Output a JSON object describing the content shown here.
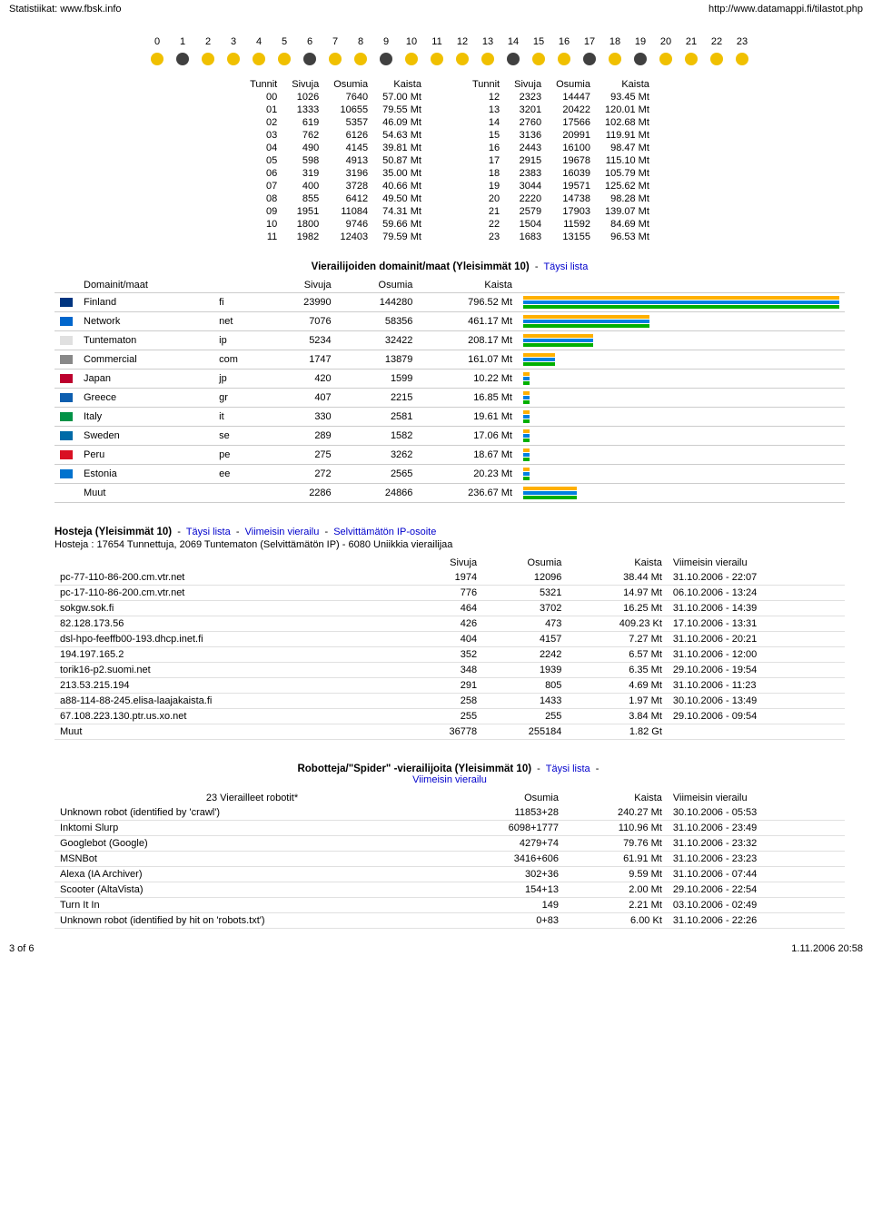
{
  "header": {
    "left": "Statistiikat: www.fbsk.info",
    "right": "http://www.datamappi.fi/tilastot.php"
  },
  "clock": {
    "hours": [
      "0",
      "1",
      "2",
      "3",
      "4",
      "5",
      "6",
      "7",
      "8",
      "9",
      "10",
      "11",
      "12",
      "13",
      "14",
      "15",
      "16",
      "17",
      "18",
      "19",
      "20",
      "21",
      "22",
      "23"
    ],
    "pie_colors": [
      "#f0c000",
      "#404040",
      "#f0c000",
      "#f0c000",
      "#f0c000",
      "#f0c000",
      "#404040",
      "#f0c000",
      "#f0c000",
      "#404040",
      "#f0c000",
      "#f0c000",
      "#f0c000",
      "#f0c000",
      "#404040",
      "#f0c000",
      "#f0c000",
      "#404040",
      "#f0c000",
      "#404040",
      "#f0c000",
      "#f0c000",
      "#f0c000",
      "#f0c000"
    ]
  },
  "hourly": {
    "headers": [
      "Tunnit",
      "Sivuja",
      "Osumia",
      "Kaista"
    ],
    "left": [
      [
        "00",
        "1026",
        "7640",
        "57.00 Mt"
      ],
      [
        "01",
        "1333",
        "10655",
        "79.55 Mt"
      ],
      [
        "02",
        "619",
        "5357",
        "46.09 Mt"
      ],
      [
        "03",
        "762",
        "6126",
        "54.63 Mt"
      ],
      [
        "04",
        "490",
        "4145",
        "39.81 Mt"
      ],
      [
        "05",
        "598",
        "4913",
        "50.87 Mt"
      ],
      [
        "06",
        "319",
        "3196",
        "35.00 Mt"
      ],
      [
        "07",
        "400",
        "3728",
        "40.66 Mt"
      ],
      [
        "08",
        "855",
        "6412",
        "49.50 Mt"
      ],
      [
        "09",
        "1951",
        "11084",
        "74.31 Mt"
      ],
      [
        "10",
        "1800",
        "9746",
        "59.66 Mt"
      ],
      [
        "11",
        "1982",
        "12403",
        "79.59 Mt"
      ]
    ],
    "right": [
      [
        "12",
        "2323",
        "14447",
        "93.45 Mt"
      ],
      [
        "13",
        "3201",
        "20422",
        "120.01 Mt"
      ],
      [
        "14",
        "2760",
        "17566",
        "102.68 Mt"
      ],
      [
        "15",
        "3136",
        "20991",
        "119.91 Mt"
      ],
      [
        "16",
        "2443",
        "16100",
        "98.47 Mt"
      ],
      [
        "17",
        "2915",
        "19678",
        "115.10 Mt"
      ],
      [
        "18",
        "2383",
        "16039",
        "105.79 Mt"
      ],
      [
        "19",
        "3044",
        "19571",
        "125.62 Mt"
      ],
      [
        "20",
        "2220",
        "14738",
        "98.28 Mt"
      ],
      [
        "21",
        "2579",
        "17903",
        "139.07 Mt"
      ],
      [
        "22",
        "1504",
        "11592",
        "84.69 Mt"
      ],
      [
        "23",
        "1683",
        "13155",
        "96.53 Mt"
      ]
    ]
  },
  "domains": {
    "title": "Vierailijoiden domainit/maat (Yleisimmät 10)",
    "full_list": "Täysi lista",
    "headers": [
      "Domainit/maat",
      "",
      "Sivuja",
      "Osumia",
      "Kaista"
    ],
    "rows": [
      {
        "flag": "#003580",
        "name": "Finland",
        "tld": "fi",
        "sivuja": "23990",
        "osumia": "144280",
        "kaista": "796.52 Mt",
        "p": 100
      },
      {
        "flag": "#0066cc",
        "name": "Network",
        "tld": "net",
        "sivuja": "7076",
        "osumia": "58356",
        "kaista": "461.17 Mt",
        "p": 40
      },
      {
        "flag": "#e0e0e0",
        "name": "Tuntematon",
        "tld": "ip",
        "sivuja": "5234",
        "osumia": "32422",
        "kaista": "208.17 Mt",
        "p": 22
      },
      {
        "flag": "#888",
        "name": "Commercial",
        "tld": "com",
        "sivuja": "1747",
        "osumia": "13879",
        "kaista": "161.07 Mt",
        "p": 10
      },
      {
        "flag": "#bc002d",
        "name": "Japan",
        "tld": "jp",
        "sivuja": "420",
        "osumia": "1599",
        "kaista": "10.22 Mt",
        "p": 2
      },
      {
        "flag": "#0d5eaf",
        "name": "Greece",
        "tld": "gr",
        "sivuja": "407",
        "osumia": "2215",
        "kaista": "16.85 Mt",
        "p": 2
      },
      {
        "flag": "#009246",
        "name": "Italy",
        "tld": "it",
        "sivuja": "330",
        "osumia": "2581",
        "kaista": "19.61 Mt",
        "p": 2
      },
      {
        "flag": "#006aa7",
        "name": "Sweden",
        "tld": "se",
        "sivuja": "289",
        "osumia": "1582",
        "kaista": "17.06 Mt",
        "p": 2
      },
      {
        "flag": "#d91023",
        "name": "Peru",
        "tld": "pe",
        "sivuja": "275",
        "osumia": "3262",
        "kaista": "18.67 Mt",
        "p": 2
      },
      {
        "flag": "#0072ce",
        "name": "Estonia",
        "tld": "ee",
        "sivuja": "272",
        "osumia": "2565",
        "kaista": "20.23 Mt",
        "p": 2
      },
      {
        "flag": "",
        "name": "Muut",
        "tld": "",
        "sivuja": "2286",
        "osumia": "24866",
        "kaista": "236.67 Mt",
        "p": 17
      }
    ]
  },
  "hosts": {
    "title": "Hosteja (Yleisimmät 10)",
    "links": {
      "full": "Täysi lista",
      "last": "Viimeisin vierailu",
      "unknown": "Selvittämätön IP-osoite"
    },
    "sub": "Hosteja : 17654 Tunnettuja, 2069 Tuntematon (Selvittämätön IP) - 6080 Uniikkia vierailijaa",
    "headers": [
      "",
      "Sivuja",
      "Osumia",
      "Kaista",
      "Viimeisin vierailu"
    ],
    "rows": [
      [
        "pc-77-110-86-200.cm.vtr.net",
        "1974",
        "12096",
        "38.44 Mt",
        "31.10.2006 - 22:07"
      ],
      [
        "pc-17-110-86-200.cm.vtr.net",
        "776",
        "5321",
        "14.97 Mt",
        "06.10.2006 - 13:24"
      ],
      [
        "sokgw.sok.fi",
        "464",
        "3702",
        "16.25 Mt",
        "31.10.2006 - 14:39"
      ],
      [
        "82.128.173.56",
        "426",
        "473",
        "409.23 Kt",
        "17.10.2006 - 13:31"
      ],
      [
        "dsl-hpo-feeffb00-193.dhcp.inet.fi",
        "404",
        "4157",
        "7.27 Mt",
        "31.10.2006 - 20:21"
      ],
      [
        "194.197.165.2",
        "352",
        "2242",
        "6.57 Mt",
        "31.10.2006 - 12:00"
      ],
      [
        "torik16-p2.suomi.net",
        "348",
        "1939",
        "6.35 Mt",
        "29.10.2006 - 19:54"
      ],
      [
        "213.53.215.194",
        "291",
        "805",
        "4.69 Mt",
        "31.10.2006 - 11:23"
      ],
      [
        "a88-114-88-245.elisa-laajakaista.fi",
        "258",
        "1433",
        "1.97 Mt",
        "30.10.2006 - 13:49"
      ],
      [
        "67.108.223.130.ptr.us.xo.net",
        "255",
        "255",
        "3.84 Mt",
        "29.10.2006 - 09:54"
      ],
      [
        "Muut",
        "36778",
        "255184",
        "1.82 Gt",
        ""
      ]
    ]
  },
  "robots": {
    "title": "Robotteja/\"Spider\" -vierailijoita (Yleisimmät 10)",
    "links": {
      "full": "Täysi lista",
      "last": "Viimeisin vierailu"
    },
    "sub": "23 Vierailleet robotit*",
    "headers": [
      "",
      "Osumia",
      "Kaista",
      "Viimeisin vierailu"
    ],
    "rows": [
      [
        "Unknown robot (identified by 'crawl')",
        "11853+28",
        "240.27 Mt",
        "30.10.2006 - 05:53"
      ],
      [
        "Inktomi Slurp",
        "6098+1777",
        "110.96 Mt",
        "31.10.2006 - 23:49"
      ],
      [
        "Googlebot (Google)",
        "4279+74",
        "79.76 Mt",
        "31.10.2006 - 23:32"
      ],
      [
        "MSNBot",
        "3416+606",
        "61.91 Mt",
        "31.10.2006 - 23:23"
      ],
      [
        "Alexa (IA Archiver)",
        "302+36",
        "9.59 Mt",
        "31.10.2006 - 07:44"
      ],
      [
        "Scooter (AltaVista)",
        "154+13",
        "2.00 Mt",
        "29.10.2006 - 22:54"
      ],
      [
        "Turn It In",
        "149",
        "2.21 Mt",
        "03.10.2006 - 02:49"
      ],
      [
        "Unknown robot (identified by hit on 'robots.txt')",
        "0+83",
        "6.00 Kt",
        "31.10.2006 - 22:26"
      ]
    ]
  },
  "footer": {
    "left": "3 of 6",
    "right": "1.11.2006 20:58"
  }
}
